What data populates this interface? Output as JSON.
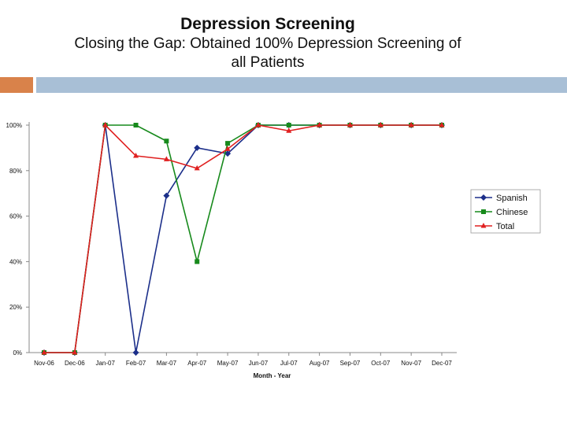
{
  "slide": {
    "title": "Depression Screening",
    "subtitle_line1": "Closing the Gap: Obtained 100% Depression Screening of",
    "subtitle_line2": "all Patients"
  },
  "colors": {
    "accent_orange": "#d9824a",
    "accent_blue": "#a8bfd6"
  },
  "chart_data": {
    "type": "line",
    "title": "",
    "xlabel": "Month - Year",
    "ylabel": "",
    "categories": [
      "Nov-06",
      "Dec-06",
      "Jan-07",
      "Feb-07",
      "Mar-07",
      "Apr-07",
      "May-07",
      "Jun-07",
      "Jul-07",
      "Aug-07",
      "Sep-07",
      "Oct-07",
      "Nov-07",
      "Dec-07"
    ],
    "ylim": [
      0,
      100
    ],
    "yticks": [
      0,
      20,
      40,
      60,
      80,
      100
    ],
    "ytick_labels": [
      "0%",
      "20%",
      "40%",
      "60%",
      "80%",
      "100%"
    ],
    "legend_position": "right",
    "series": [
      {
        "name": "Spanish",
        "color": "#1c2f8a",
        "marker": "diamond",
        "values": [
          0,
          0,
          100,
          0,
          69,
          90,
          87.5,
          100,
          100,
          100,
          100,
          100,
          100,
          100
        ]
      },
      {
        "name": "Chinese",
        "color": "#178a1c",
        "marker": "square",
        "values": [
          0,
          0,
          100,
          100,
          93,
          40,
          92,
          100,
          100,
          100,
          100,
          100,
          100,
          100
        ]
      },
      {
        "name": "Total",
        "color": "#e02020",
        "marker": "triangle",
        "values": [
          0,
          0,
          100,
          86.5,
          85,
          81,
          89.5,
          100,
          97.5,
          100,
          100,
          100,
          100,
          100
        ]
      }
    ]
  }
}
